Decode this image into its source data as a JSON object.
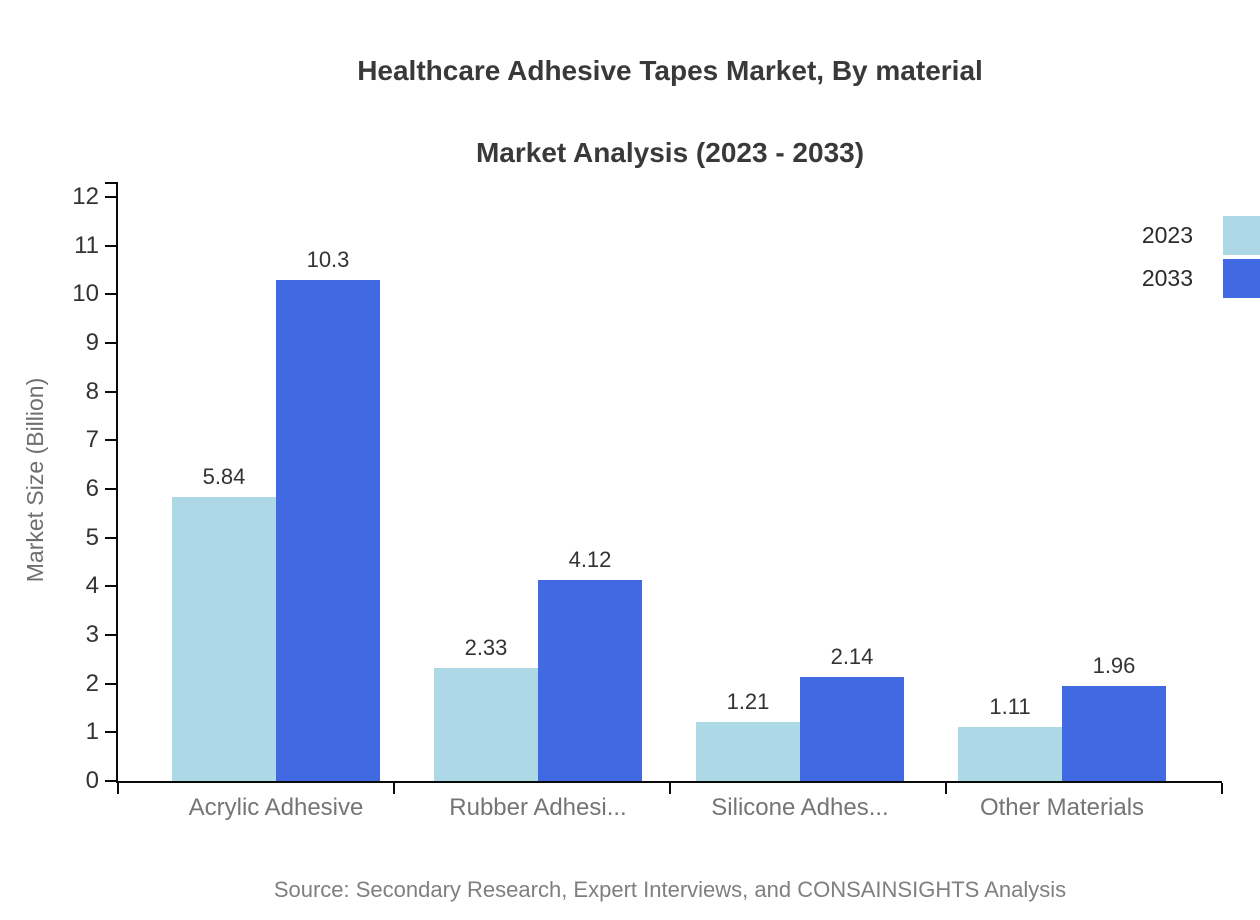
{
  "title": {
    "line1": "Healthcare Adhesive Tapes Market, By material",
    "line2": "Market Analysis (2023 - 2033)"
  },
  "source_note": "Source: Secondary Research, Expert Interviews, and CONSAINSIGHTS Analysis",
  "chart_data": {
    "type": "bar",
    "title": "Healthcare Adhesive Tapes Market, By material Market Analysis (2023 - 2033)",
    "categories": [
      "Acrylic Adhesive",
      "Rubber Adhesi...",
      "Silicone Adhes...",
      "Other Materials"
    ],
    "series": [
      {
        "name": "2023",
        "color": "#ADD8E6",
        "values": [
          5.84,
          2.33,
          1.21,
          1.11
        ]
      },
      {
        "name": "2033",
        "color": "#4169E1",
        "values": [
          10.3,
          4.12,
          2.14,
          1.96
        ]
      }
    ],
    "xlabel": "",
    "ylabel": "Market Size (Billion)",
    "ylim": [
      0,
      12
    ],
    "ytick_step": 1,
    "yticks": [
      0,
      1,
      2,
      3,
      4,
      5,
      6,
      7,
      8,
      9,
      10,
      11,
      12
    ],
    "grid": false,
    "legend_position": "top-right",
    "bar_value_labels": [
      "5.84",
      "10.3",
      "2.33",
      "4.12",
      "1.21",
      "2.14",
      "1.11",
      "1.96"
    ]
  },
  "colors": {
    "series_2023": "#ADD8E6",
    "series_2033": "#4169E1",
    "axis": "#0a0a0a",
    "title_text": "#37393b",
    "tick_text": "#333333",
    "category_text": "#757575",
    "source_text": "#7f7f7f",
    "corner_mark": "#4169E1",
    "background": "#ffffff"
  }
}
